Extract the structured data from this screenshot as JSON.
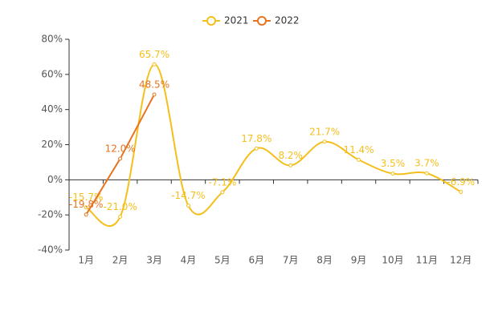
{
  "chart_data": {
    "type": "line",
    "categories": [
      "1月",
      "2月",
      "3月",
      "4月",
      "5月",
      "6月",
      "7月",
      "8月",
      "9月",
      "10月",
      "11月",
      "12月"
    ],
    "series": [
      {
        "name": "2021",
        "color": "#f5bf1b",
        "smooth": true,
        "values": [
          -15.7,
          -21.0,
          65.7,
          -14.7,
          -7.1,
          17.8,
          8.2,
          21.7,
          11.4,
          3.5,
          3.7,
          -6.9
        ],
        "value_labels": [
          "-15.7%",
          "-21.0%",
          "65.7%",
          "-14.7%",
          "-7.1%",
          "17.8%",
          "8.2%",
          "21.7%",
          "11.4%",
          "3.5%",
          "3.7%",
          "-6.9%"
        ]
      },
      {
        "name": "2022",
        "color": "#e8731f",
        "smooth": false,
        "values": [
          -19.8,
          12.0,
          48.5,
          null,
          null,
          null,
          null,
          null,
          null,
          null,
          null,
          null
        ],
        "value_labels": [
          "-19.8%",
          "12.0%",
          "48.5%",
          null,
          null,
          null,
          null,
          null,
          null,
          null,
          null,
          null
        ]
      }
    ],
    "ylim": [
      -40,
      80
    ],
    "yticks": [
      {
        "value": -40,
        "label": "-40%"
      },
      {
        "value": -20,
        "label": "-20%"
      },
      {
        "value": 0,
        "label": "0%"
      },
      {
        "value": 20,
        "label": "20%"
      },
      {
        "value": 40,
        "label": "40%"
      },
      {
        "value": 60,
        "label": "60%"
      },
      {
        "value": 80,
        "label": "80%"
      }
    ],
    "legend": "top"
  }
}
